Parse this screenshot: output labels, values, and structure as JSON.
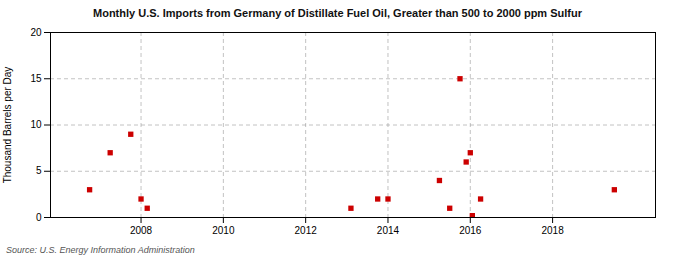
{
  "chart_data": {
    "type": "scatter",
    "title": "Monthly U.S. Imports from Germany of Distillate Fuel Oil, Greater than 500 to 2000 ppm Sulfur",
    "ylabel": "Thousand Barrels per Day",
    "source": "Source: U.S. Energy Information Administration",
    "color": "#cc0000",
    "marker": "square",
    "grid": true,
    "xlim": [
      2005.8,
      2020.5
    ],
    "ylim": [
      0,
      20
    ],
    "xticks": [
      2008,
      2010,
      2012,
      2014,
      2016,
      2018
    ],
    "yticks": [
      0,
      5,
      10,
      15,
      20
    ],
    "x": [
      2006.75,
      2007.25,
      2007.75,
      2008.0,
      2008.15,
      2013.1,
      2013.75,
      2014.0,
      2015.25,
      2015.5,
      2015.75,
      2015.9,
      2016.0,
      2016.05,
      2016.25,
      2019.5
    ],
    "values": [
      3.0,
      7.0,
      9.0,
      2.0,
      1.0,
      1.0,
      2.0,
      2.0,
      4.0,
      1.0,
      15.0,
      6.0,
      7.0,
      0.2,
      2.0,
      3.0
    ]
  }
}
